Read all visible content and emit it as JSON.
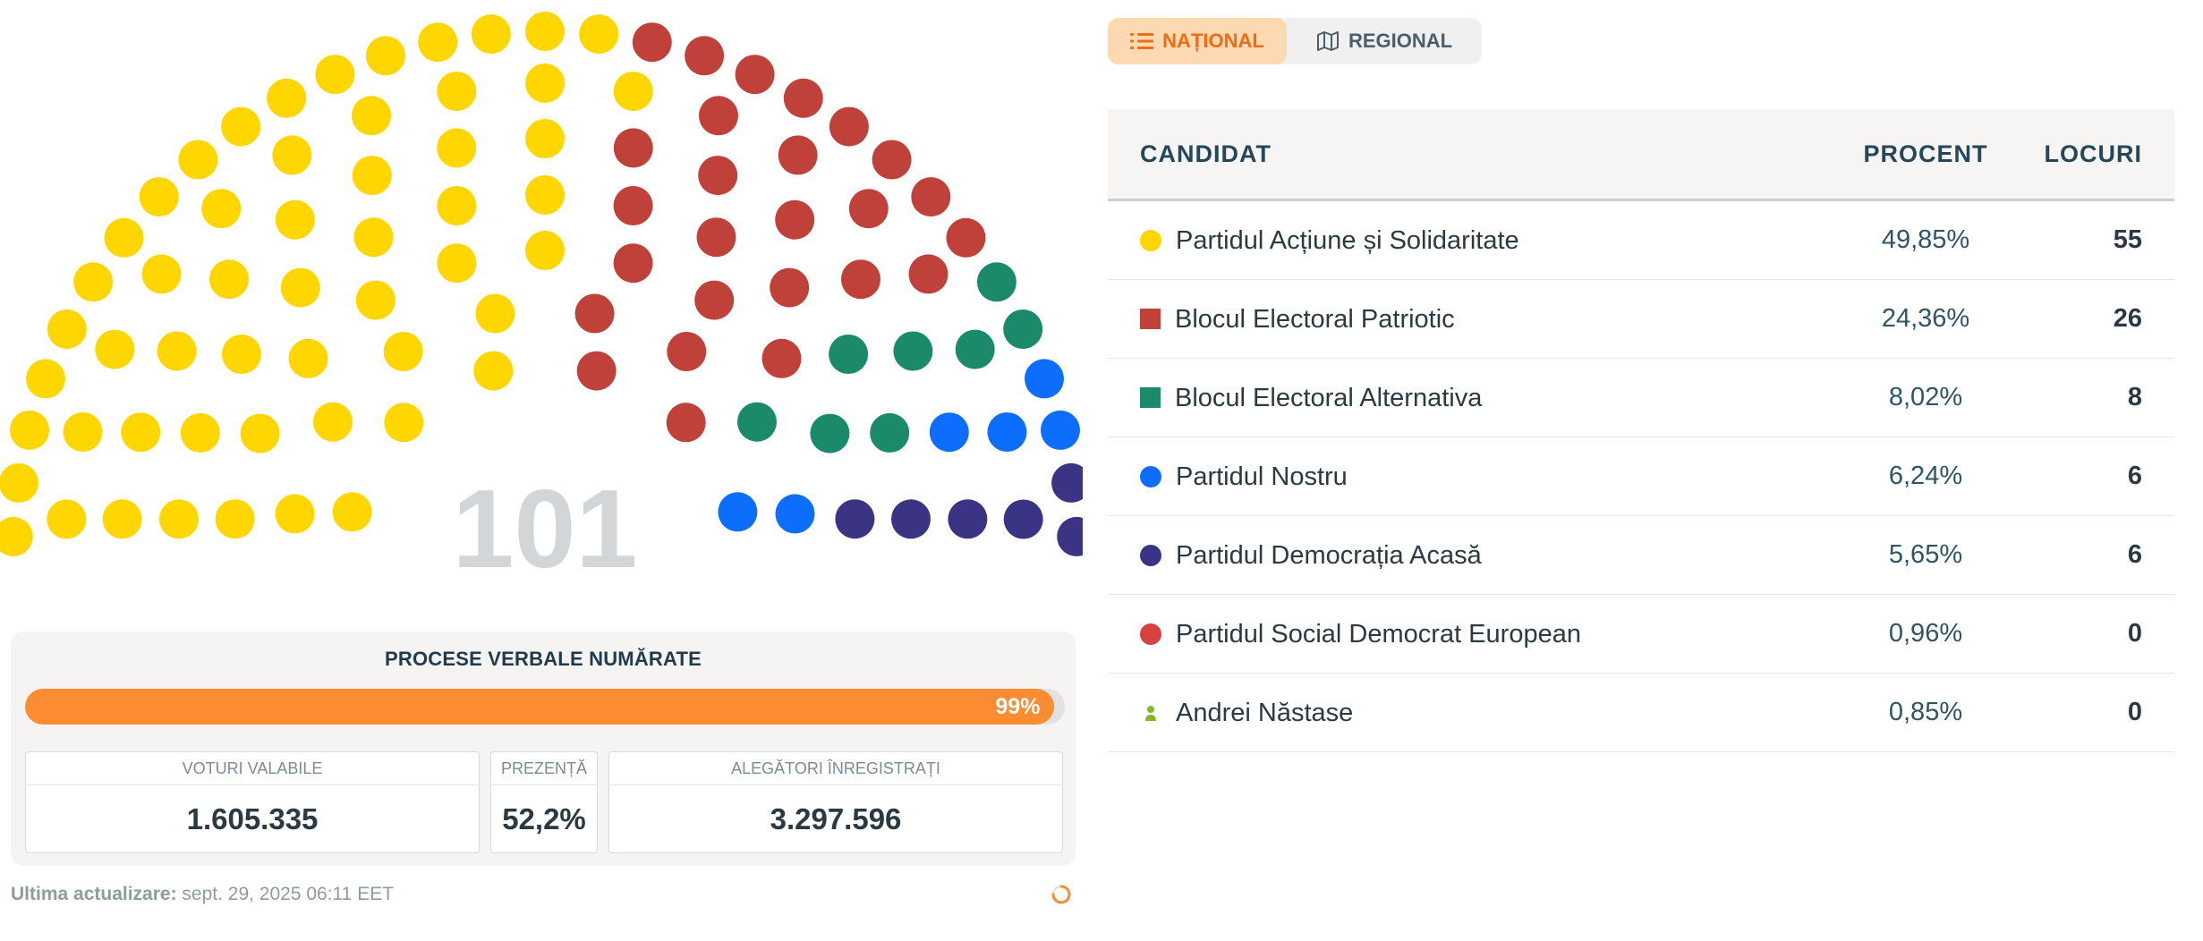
{
  "chart_data": {
    "type": "hemicycle",
    "total_seats": "101",
    "series": [
      {
        "name": "Partidul Acțiune și Solidaritate",
        "percent": "49,85%",
        "seats": 55,
        "color": "#ffd600",
        "marker": "circle"
      },
      {
        "name": "Blocul Electoral Patriotic",
        "percent": "24,36%",
        "seats": 26,
        "color": "#c0413a",
        "marker": "square"
      },
      {
        "name": "Blocul Electoral Alternativa",
        "percent": "8,02%",
        "seats": 8,
        "color": "#1b8a6b",
        "marker": "square"
      },
      {
        "name": "Partidul Nostru",
        "percent": "6,24%",
        "seats": 6,
        "color": "#0d6efd",
        "marker": "circle"
      },
      {
        "name": "Partidul Democrația Acasă",
        "percent": "5,65%",
        "seats": 6,
        "color": "#3b3485",
        "marker": "circle"
      },
      {
        "name": "Partidul Social Democrat European",
        "percent": "0,96%",
        "seats": 0,
        "color": "#d94141",
        "marker": "circle"
      },
      {
        "name": "Andrei Năstase",
        "percent": "0,85%",
        "seats": 0,
        "color": "#86b62b",
        "marker": "person-icon"
      }
    ]
  },
  "tabs": {
    "national_label": "NAȚIONAL",
    "national_icon": "list-icon",
    "regional_label": "REGIONAL",
    "regional_icon": "map-icon",
    "active": "national"
  },
  "table": {
    "headers": {
      "candidate": "CANDIDAT",
      "percent": "PROCENT",
      "seats": "LOCURI"
    }
  },
  "counted": {
    "title": "PROCESE VERBALE NUMĂRATE",
    "progress_value": 0.99,
    "progress_label": "99%",
    "progress_color": "#fb8c32"
  },
  "stats": {
    "valid_votes_label": "VOTURI VALABILE",
    "valid_votes_value": "1.605.335",
    "turnout_label": "PREZENȚĂ",
    "turnout_value": "52,2%",
    "registered_label": "ALEGĂTORI ÎNREGISTRAȚI",
    "registered_value": "3.297.596"
  },
  "updated": {
    "label": "Ultima actualizare:",
    "value": "sept. 29, 2025 06:11 EET"
  }
}
